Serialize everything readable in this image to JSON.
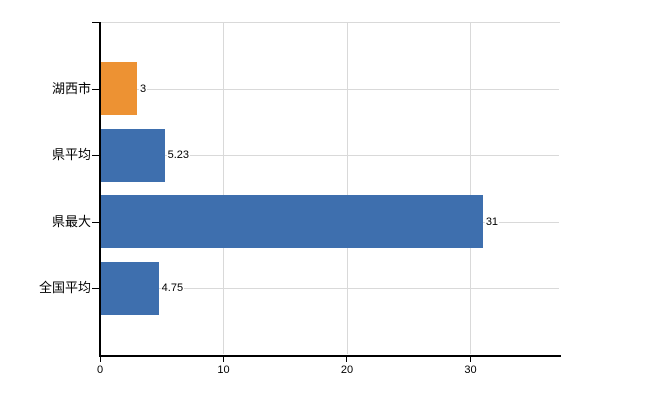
{
  "chart_data": {
    "type": "bar",
    "orientation": "horizontal",
    "title": "",
    "xlabel": "",
    "ylabel": "",
    "categories": [
      "湖西市",
      "県平均",
      "県最大",
      "全国平均"
    ],
    "values": [
      3,
      5.23,
      31,
      4.75
    ],
    "value_labels": [
      "3",
      "5.23",
      "31",
      "4.75"
    ],
    "bar_colors": [
      "#ED9233",
      "#3E6FAE",
      "#3E6FAE",
      "#3E6FAE"
    ],
    "x_ticks": [
      0,
      10,
      20,
      30
    ],
    "xlim": [
      0,
      37.25
    ],
    "grid": true,
    "legend": null
  },
  "colors": {
    "bar_orange": "#ED9233",
    "bar_blue": "#3E6FAE",
    "gridline": "#d9d9d9",
    "axis": "#000000",
    "text": "#000000",
    "background": "#ffffff"
  }
}
